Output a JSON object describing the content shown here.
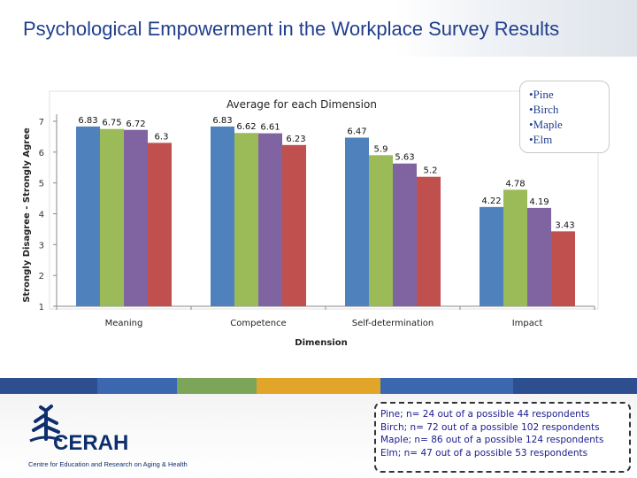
{
  "slide": {
    "title": "Psychological Empowerment in the Workplace Survey Results"
  },
  "legend": {
    "items": [
      {
        "label": "•Pine",
        "color": "#4f81bd"
      },
      {
        "label": "•Birch",
        "color": "#9bbb59"
      },
      {
        "label": "•Maple",
        "color": "#8064a2"
      },
      {
        "label": "•Elm",
        "color": "#c0504d"
      }
    ]
  },
  "chart_data": {
    "type": "bar",
    "title": "Average for each Dimension",
    "xlabel": "Dimension",
    "ylabel": "Strongly Disagree - Strongly Agree",
    "ylim": [
      1,
      7
    ],
    "yticks": [
      1,
      2,
      3,
      4,
      5,
      6,
      7
    ],
    "categories": [
      "Meaning",
      "Competence",
      "Self-determination",
      "Impact"
    ],
    "series": [
      {
        "name": "Pine",
        "color": "#4f81bd",
        "values": [
          6.83,
          6.83,
          6.47,
          4.22
        ],
        "labels": [
          "6.83",
          "6.83",
          "6.47",
          "4.22"
        ]
      },
      {
        "name": "Birch",
        "color": "#9bbb59",
        "values": [
          6.75,
          6.62,
          5.9,
          4.78
        ],
        "labels": [
          "6.75",
          "6.62",
          "5.9",
          "4.78"
        ]
      },
      {
        "name": "Maple",
        "color": "#8064a2",
        "values": [
          6.72,
          6.61,
          5.63,
          4.19
        ],
        "labels": [
          "6.72",
          "6.61",
          "5.63",
          "4.19"
        ]
      },
      {
        "name": "Elm",
        "color": "#c0504d",
        "values": [
          6.3,
          6.23,
          5.2,
          3.43
        ],
        "labels": [
          "6.3",
          "6.23",
          "5.2",
          "3.43"
        ]
      }
    ]
  },
  "footer": {
    "stripe_colors": [
      "#2d4f8f",
      "#3b67b0",
      "#7da55a",
      "#e1a52a",
      "#3b67b0",
      "#2d4f8f"
    ],
    "logo": {
      "name": "CERAH",
      "tagline": "Centre for Education and Research on Aging & Health"
    },
    "notes": [
      "Pine; n= 24 out of a possible 44 respondents",
      "Birch; n= 72 out of a possible 102 respondents",
      "Maple; n= 86 out of a possible 124 respondents",
      "Elm; n= 47 out of a possible 53 respondents"
    ]
  }
}
